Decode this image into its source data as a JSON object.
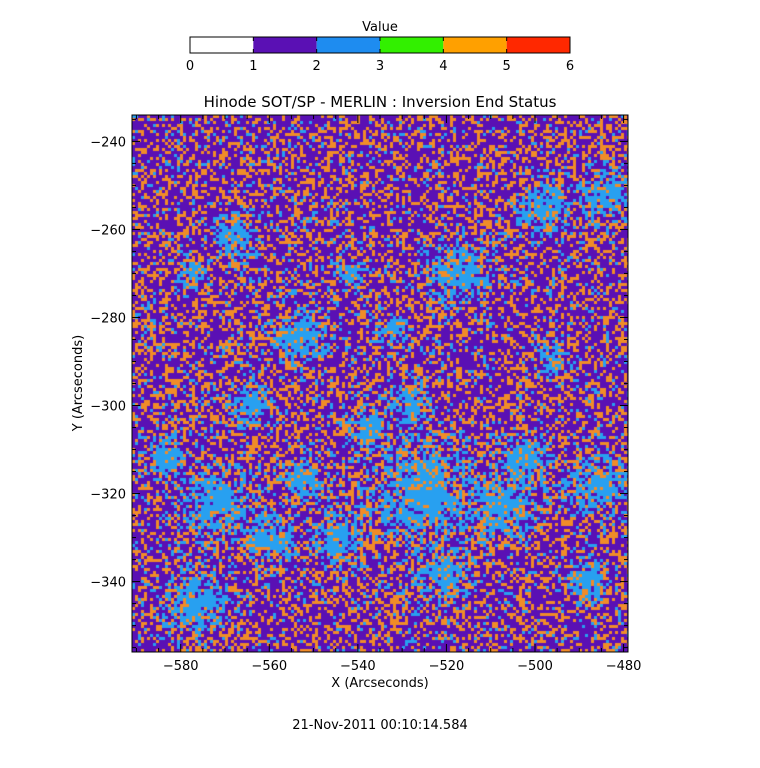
{
  "chart_data": {
    "type": "heatmap",
    "title": "Hinode SOT/SP - MERLIN : Inversion End Status",
    "xlabel": "X (Arcseconds)",
    "ylabel": "Y (Arcseconds)",
    "xlim": [
      -591,
      -479
    ],
    "ylim": [
      -356,
      -234
    ],
    "x_ticks": [
      -580,
      -560,
      -540,
      -520,
      -500,
      -480
    ],
    "y_ticks": [
      -240,
      -260,
      -280,
      -300,
      -320,
      -340
    ],
    "colorbar": {
      "title": "Value",
      "range": [
        0,
        6
      ],
      "ticks": [
        0,
        1,
        2,
        3,
        4,
        5,
        6
      ],
      "bins": [
        {
          "from": 0,
          "to": 1,
          "color": "#ffffff"
        },
        {
          "from": 1,
          "to": 2,
          "color": "#5a10b4"
        },
        {
          "from": 2,
          "to": 3,
          "color": "#1e8cf0"
        },
        {
          "from": 3,
          "to": 4,
          "color": "#32f000"
        },
        {
          "from": 4,
          "to": 5,
          "color": "#ffa000"
        },
        {
          "from": 5,
          "to": 6,
          "color": "#ff2800"
        }
      ]
    },
    "field_colors": {
      "value_1": "#5a10b4",
      "value_2": "#28a0f0",
      "value_4": "#f08c28"
    },
    "light_blue_regions": [
      {
        "x": -572,
        "y": -322,
        "r": 7
      },
      {
        "x": -576,
        "y": -345,
        "r": 6
      },
      {
        "x": -583,
        "y": -312,
        "r": 4
      },
      {
        "x": -560,
        "y": -330,
        "r": 5
      },
      {
        "x": -564,
        "y": -300,
        "r": 4
      },
      {
        "x": -553,
        "y": -285,
        "r": 5
      },
      {
        "x": -552,
        "y": -317,
        "r": 4
      },
      {
        "x": -545,
        "y": -330,
        "r": 5
      },
      {
        "x": -538,
        "y": -305,
        "r": 4
      },
      {
        "x": -525,
        "y": -320,
        "r": 10
      },
      {
        "x": -520,
        "y": -338,
        "r": 5
      },
      {
        "x": -528,
        "y": -300,
        "r": 4
      },
      {
        "x": -517,
        "y": -270,
        "r": 6
      },
      {
        "x": -508,
        "y": -323,
        "r": 7
      },
      {
        "x": -503,
        "y": -313,
        "r": 5
      },
      {
        "x": -498,
        "y": -255,
        "r": 5
      },
      {
        "x": -484,
        "y": -252,
        "r": 5
      },
      {
        "x": -486,
        "y": -318,
        "r": 6
      },
      {
        "x": -488,
        "y": -340,
        "r": 4
      },
      {
        "x": -568,
        "y": -262,
        "r": 4
      },
      {
        "x": -578,
        "y": -270,
        "r": 3
      },
      {
        "x": -542,
        "y": -270,
        "r": 3
      },
      {
        "x": -533,
        "y": -283,
        "r": 3
      },
      {
        "x": -496,
        "y": -290,
        "r": 3
      }
    ],
    "orange_regions": [
      {
        "x": -524,
        "y": -318,
        "r": 4
      },
      {
        "x": -535,
        "y": -330,
        "r": 3
      },
      {
        "x": -512,
        "y": -328,
        "r": 3
      }
    ],
    "timestamp": "21-Nov-2011 00:10:14.584"
  }
}
